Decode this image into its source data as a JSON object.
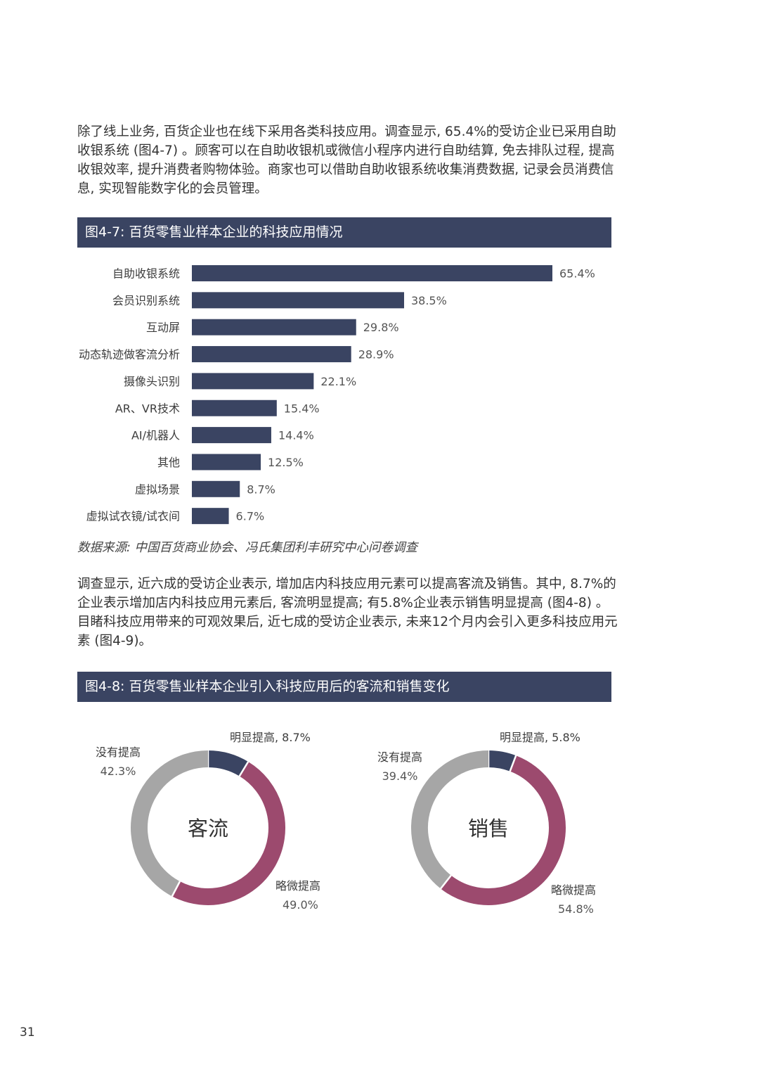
{
  "intro_paragraph": "除了线上业务, 百货企业也在线下采用各类科技应用。调查显示, 65.4%的受访企业已采用自助收银系统 (图4-7) 。顾客可以在自助收银机或微信小程序内进行自助结算, 免去排队过程, 提高收银效率, 提升消费者购物体验。商家也可以借助自助收银系统收集消费数据, 记录会员消费信息, 实现智能数字化的会员管理。",
  "figure1": {
    "header": "图4-7: 百货零售业样本企业的科技应用情况"
  },
  "source_note": "数据来源: 中国百货商业协会、冯氏集团利丰研究中心问卷调查",
  "second_paragraph": "调查显示, 近六成的受访企业表示, 增加店内科技应用元素可以提高客流及销售。其中, 8.7%的企业表示增加店内科技应用元素后, 客流明显提高; 有5.8%企业表示销售明显提高 (图4-8) 。目睹科技应用带来的可观效果后, 近七成的受访企业表示, 未来12个月内会引入更多科技应用元素 (图4-9)。",
  "figure2": {
    "header": "图4-8: 百货零售业样本企业引入科技应用后的客流和销售变化"
  },
  "page_number": "31",
  "chart_data": [
    {
      "type": "bar",
      "orientation": "horizontal",
      "categories": [
        "自助收银系统",
        "会员识别系统",
        "互动屏",
        "动态轨迹做客流分析",
        "摄像头识别",
        "AR、VR技术",
        "AI/机器人",
        "其他",
        "虚拟场景",
        "虚拟试衣镜/试衣间"
      ],
      "values": [
        65.4,
        38.5,
        29.8,
        28.9,
        22.1,
        15.4,
        14.4,
        12.5,
        8.7,
        6.7
      ],
      "value_labels": [
        "65.4%",
        "38.5%",
        "29.8%",
        "28.9%",
        "22.1%",
        "15.4%",
        "14.4%",
        "12.5%",
        "8.7%",
        "6.7%"
      ],
      "unit": "%",
      "color": "#3a4462"
    },
    {
      "type": "pie",
      "variant": "donut",
      "center_label": "客流",
      "slices": [
        {
          "label": "明显提高",
          "value": 8.7,
          "display": "明显提高, 8.7%",
          "color": "#3a4462"
        },
        {
          "label": "略微提高",
          "value": 49.0,
          "display": "49.0%",
          "color": "#9c4a6e"
        },
        {
          "label": "没有提高",
          "value": 42.3,
          "display": "42.3%",
          "color": "#a6a6a6"
        }
      ]
    },
    {
      "type": "pie",
      "variant": "donut",
      "center_label": "销售",
      "slices": [
        {
          "label": "明显提高",
          "value": 5.8,
          "display": "明显提高, 5.8%",
          "color": "#3a4462"
        },
        {
          "label": "略微提高",
          "value": 54.8,
          "display": "54.8%",
          "color": "#9c4a6e"
        },
        {
          "label": "没有提高",
          "value": 39.4,
          "display": "39.4%",
          "color": "#a6a6a6"
        }
      ]
    }
  ]
}
